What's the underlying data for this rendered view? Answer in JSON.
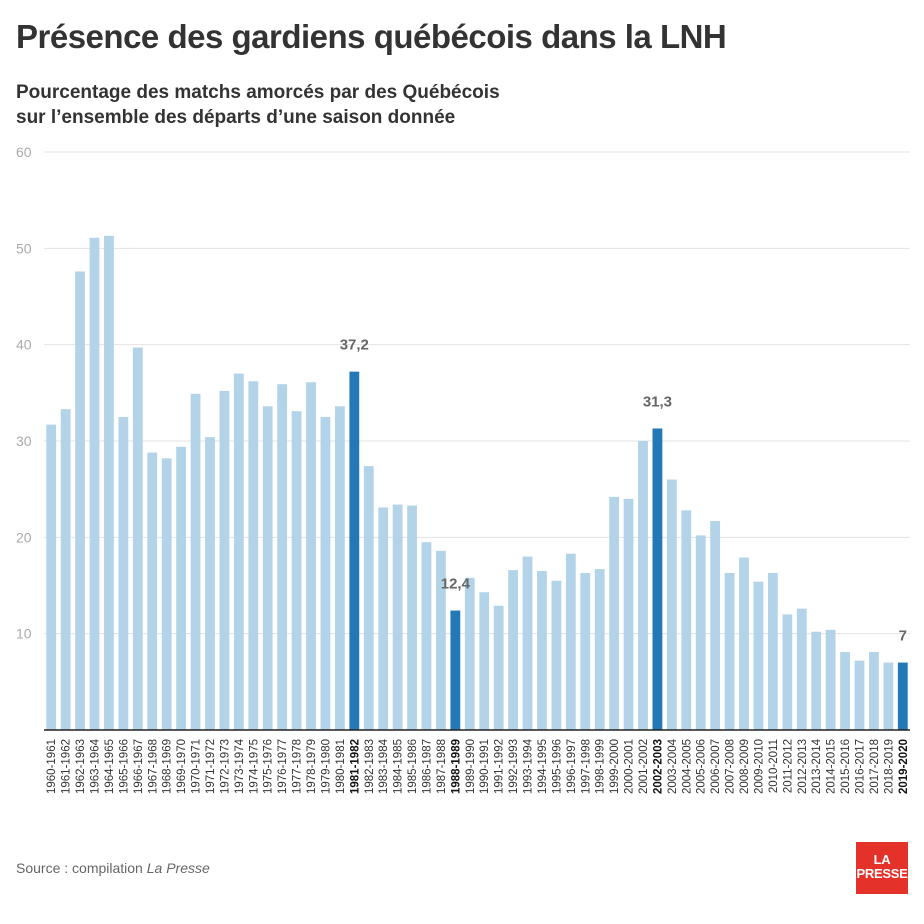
{
  "title": "Présence des gardiens québécois dans la LNH",
  "subtitle_line1": "Pourcentage des matchs amorcés par des Québécois",
  "subtitle_line2": "sur l’ensemble des départs d’une saison donnée",
  "source_prefix": "Source : compilation ",
  "source_name": "La Presse",
  "logo_line1": "LA",
  "logo_line2": "PRESSE",
  "colors": {
    "bar": "#b3d4e8",
    "highlight": "#2378b5",
    "grid": "#e3e3e3",
    "axis": "#222222"
  },
  "chart_data": {
    "type": "bar",
    "title": "Présence des gardiens québécois dans la LNH",
    "ylim": [
      0,
      60
    ],
    "yticks": [
      10,
      20,
      30,
      40,
      50,
      60
    ],
    "ytick_labels": [
      "10",
      "20",
      "30",
      "40",
      "50",
      "60"
    ],
    "grid": true,
    "categories": [
      "1960-1961",
      "1961-1962",
      "1962-1963",
      "1963-1964",
      "1964-1965",
      "1965-1966",
      "1966-1967",
      "1967-1968",
      "1968-1969",
      "1969-1970",
      "1970-1971",
      "1971-1972",
      "1972-1973",
      "1973-1974",
      "1974-1975",
      "1975-1976",
      "1976-1977",
      "1977-1978",
      "1978-1979",
      "1979-1980",
      "1980-1981",
      "1981-1982",
      "1982-1983",
      "1983-1984",
      "1984-1985",
      "1985-1986",
      "1986-1987",
      "1987-1988",
      "1988-1989",
      "1989-1990",
      "1990-1991",
      "1991-1992",
      "1992-1993",
      "1993-1994",
      "1994-1995",
      "1995-1996",
      "1996-1997",
      "1997-1998",
      "1998-1999",
      "1999-2000",
      "2000-2001",
      "2001-2002",
      "2002-2003",
      "2003-2004",
      "2004-2005",
      "2005-2006",
      "2006-2007",
      "2007-2008",
      "2008-2009",
      "2009-2010",
      "2010-2011",
      "2011-2012",
      "2012-2013",
      "2013-2014",
      "2014-2015",
      "2015-2016",
      "2016-2017",
      "2017-2018",
      "2018-2019",
      "2019-2020"
    ],
    "values": [
      31.7,
      33.3,
      47.6,
      51.1,
      51.3,
      32.5,
      39.7,
      28.8,
      28.2,
      29.4,
      34.9,
      30.4,
      35.2,
      37.0,
      36.2,
      33.6,
      35.9,
      33.1,
      36.1,
      32.5,
      33.6,
      37.2,
      27.4,
      23.1,
      23.4,
      23.3,
      19.5,
      18.6,
      12.4,
      15.8,
      14.3,
      12.9,
      16.6,
      18.0,
      16.5,
      15.5,
      18.3,
      16.3,
      16.7,
      24.2,
      24.0,
      30.0,
      31.3,
      26.0,
      22.8,
      20.2,
      21.7,
      16.3,
      17.9,
      15.4,
      16.3,
      12.0,
      12.6,
      10.2,
      10.4,
      8.1,
      7.2,
      8.1,
      7.0,
      7.0
    ],
    "highlighted": [
      "1981-1982",
      "1988-1989",
      "2002-2003",
      "2019-2020"
    ],
    "value_labels": [
      {
        "category": "1981-1982",
        "label": "37,2"
      },
      {
        "category": "1988-1989",
        "label": "12,4"
      },
      {
        "category": "2002-2003",
        "label": "31,3"
      },
      {
        "category": "2019-2020",
        "label": "7"
      }
    ]
  }
}
